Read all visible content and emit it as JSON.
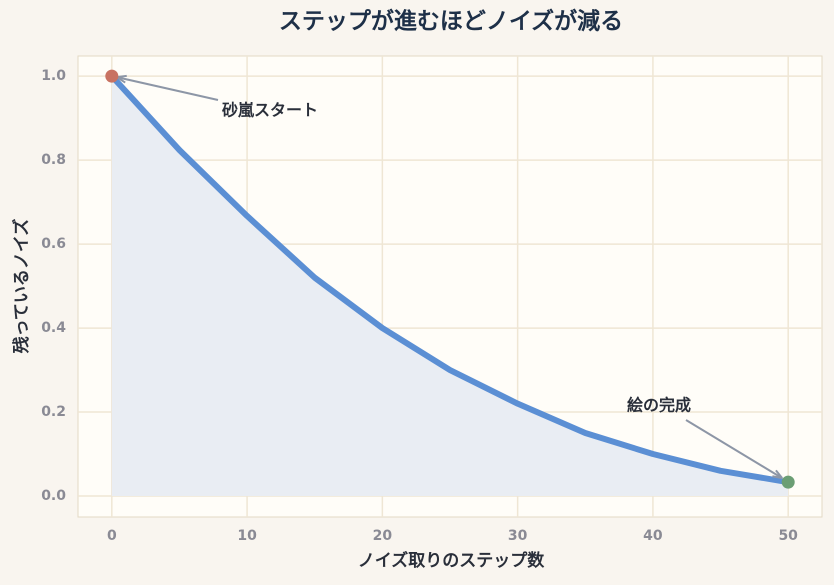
{
  "chart_data": {
    "type": "line",
    "title": "ステップが進むほどノイズが減る",
    "x_label": "ノイズ取りのステップ数",
    "y_label": "残っているノイズ",
    "x": [
      0,
      5,
      10,
      15,
      20,
      25,
      30,
      35,
      40,
      45,
      50
    ],
    "values": [
      1.0,
      0.824,
      0.667,
      0.52,
      0.4,
      0.3,
      0.22,
      0.15,
      0.1,
      0.06,
      0.033
    ],
    "color": "#5b8fd4",
    "fill_color": "#e9edf3",
    "start_color": "#c87262",
    "end_color": "#6b9e74",
    "xlim": [
      -2.5,
      52.5
    ],
    "xticks": [
      0,
      10,
      20,
      30,
      40,
      50
    ],
    "ylim": [
      -0.05,
      1.048
    ],
    "yticks": [
      {
        "value": 0,
        "label": "0.0"
      },
      {
        "value": 0.2,
        "label": "0.2"
      },
      {
        "value": 0.4,
        "label": "0.4"
      },
      {
        "value": 0.6,
        "label": "0.6"
      },
      {
        "value": 0.8,
        "label": "0.8"
      },
      {
        "value": 1,
        "label": "1.0"
      }
    ],
    "grid": true,
    "annotations": [
      {
        "text": "砂嵐スタート"
      },
      {
        "text": "絵の完成"
      }
    ]
  }
}
